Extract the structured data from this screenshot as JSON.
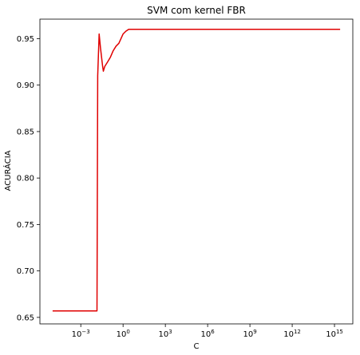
{
  "chart_data": {
    "type": "line",
    "title": "SVM com kernel FBR",
    "xlabel": "C",
    "ylabel": "ACURÁCIA",
    "xscale": "log",
    "xlim_log10": [
      -5.9,
      16.3
    ],
    "ylim": [
      0.643,
      0.971
    ],
    "grid": false,
    "line_color": "#e00000",
    "x_ticks": [
      {
        "exp": -3,
        "label": "10",
        "sup": "−3"
      },
      {
        "exp": 0,
        "label": "10",
        "sup": "0"
      },
      {
        "exp": 3,
        "label": "10",
        "sup": "3"
      },
      {
        "exp": 6,
        "label": "10",
        "sup": "6"
      },
      {
        "exp": 9,
        "label": "10",
        "sup": "9"
      },
      {
        "exp": 12,
        "label": "10",
        "sup": "12"
      },
      {
        "exp": 15,
        "label": "10",
        "sup": "15"
      }
    ],
    "y_ticks": [
      "0.65",
      "0.70",
      "0.75",
      "0.80",
      "0.85",
      "0.90",
      "0.95"
    ],
    "series": [
      {
        "x_log10": [
          -5,
          -4.5,
          -4,
          -3.5,
          -3,
          -2.5,
          -2,
          -1.85,
          -1.8,
          -1.7,
          -1.6,
          -1.45,
          -1.4,
          -1.3,
          -1.1,
          -0.9,
          -0.7,
          -0.5,
          -0.3,
          0,
          0.2,
          0.4,
          0.6,
          1,
          2,
          4,
          6,
          8,
          10,
          12,
          14,
          15.4
        ],
        "y": [
          0.657,
          0.657,
          0.657,
          0.657,
          0.657,
          0.657,
          0.657,
          0.657,
          0.91,
          0.955,
          0.94,
          0.92,
          0.915,
          0.92,
          0.925,
          0.93,
          0.937,
          0.942,
          0.945,
          0.955,
          0.958,
          0.96,
          0.96,
          0.96,
          0.96,
          0.96,
          0.96,
          0.96,
          0.96,
          0.96,
          0.96,
          0.96
        ]
      }
    ]
  }
}
